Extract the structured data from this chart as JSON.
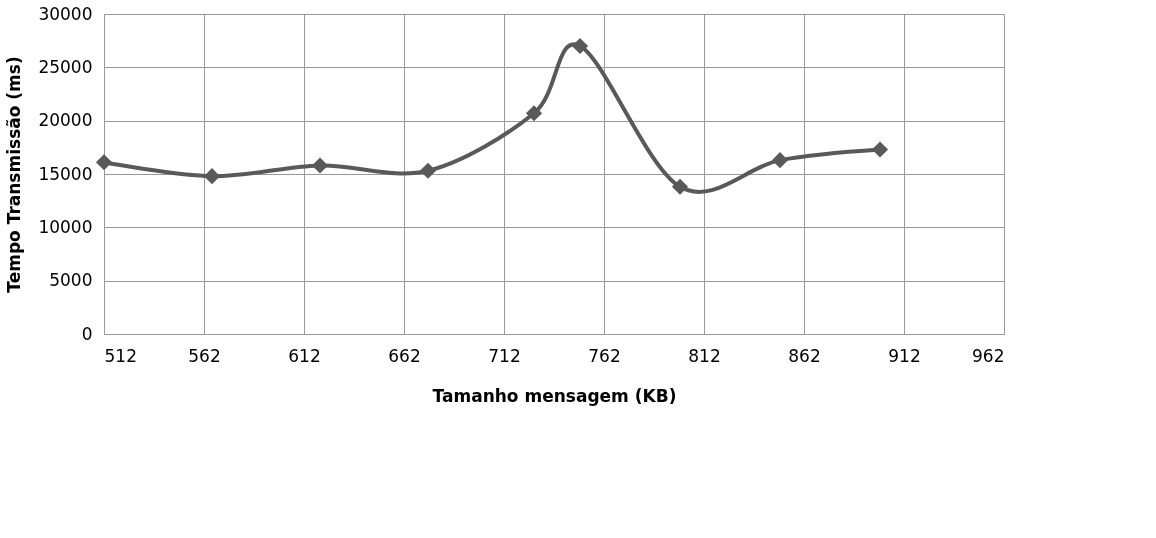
{
  "chart_data": {
    "type": "line",
    "xlabel": "Tamanho mensagem (KB)",
    "ylabel": "Tempo Transmissão (ms)",
    "x": [
      512,
      566,
      620,
      674,
      727,
      750,
      800,
      850,
      900
    ],
    "series": [
      {
        "color": "#595959",
        "values": [
          16100,
          14800,
          15800,
          15300,
          20700,
          27000,
          13800,
          16300,
          17300
        ]
      }
    ],
    "xlim": [
      512,
      962
    ],
    "xticks": [
      512,
      562,
      612,
      662,
      712,
      762,
      812,
      862,
      912,
      962
    ],
    "ylim": [
      0,
      30000
    ],
    "yticks": [
      0,
      5000,
      10000,
      15000,
      20000,
      25000,
      30000
    ],
    "grid": true,
    "marker": "diamond",
    "line_style": "solid"
  }
}
